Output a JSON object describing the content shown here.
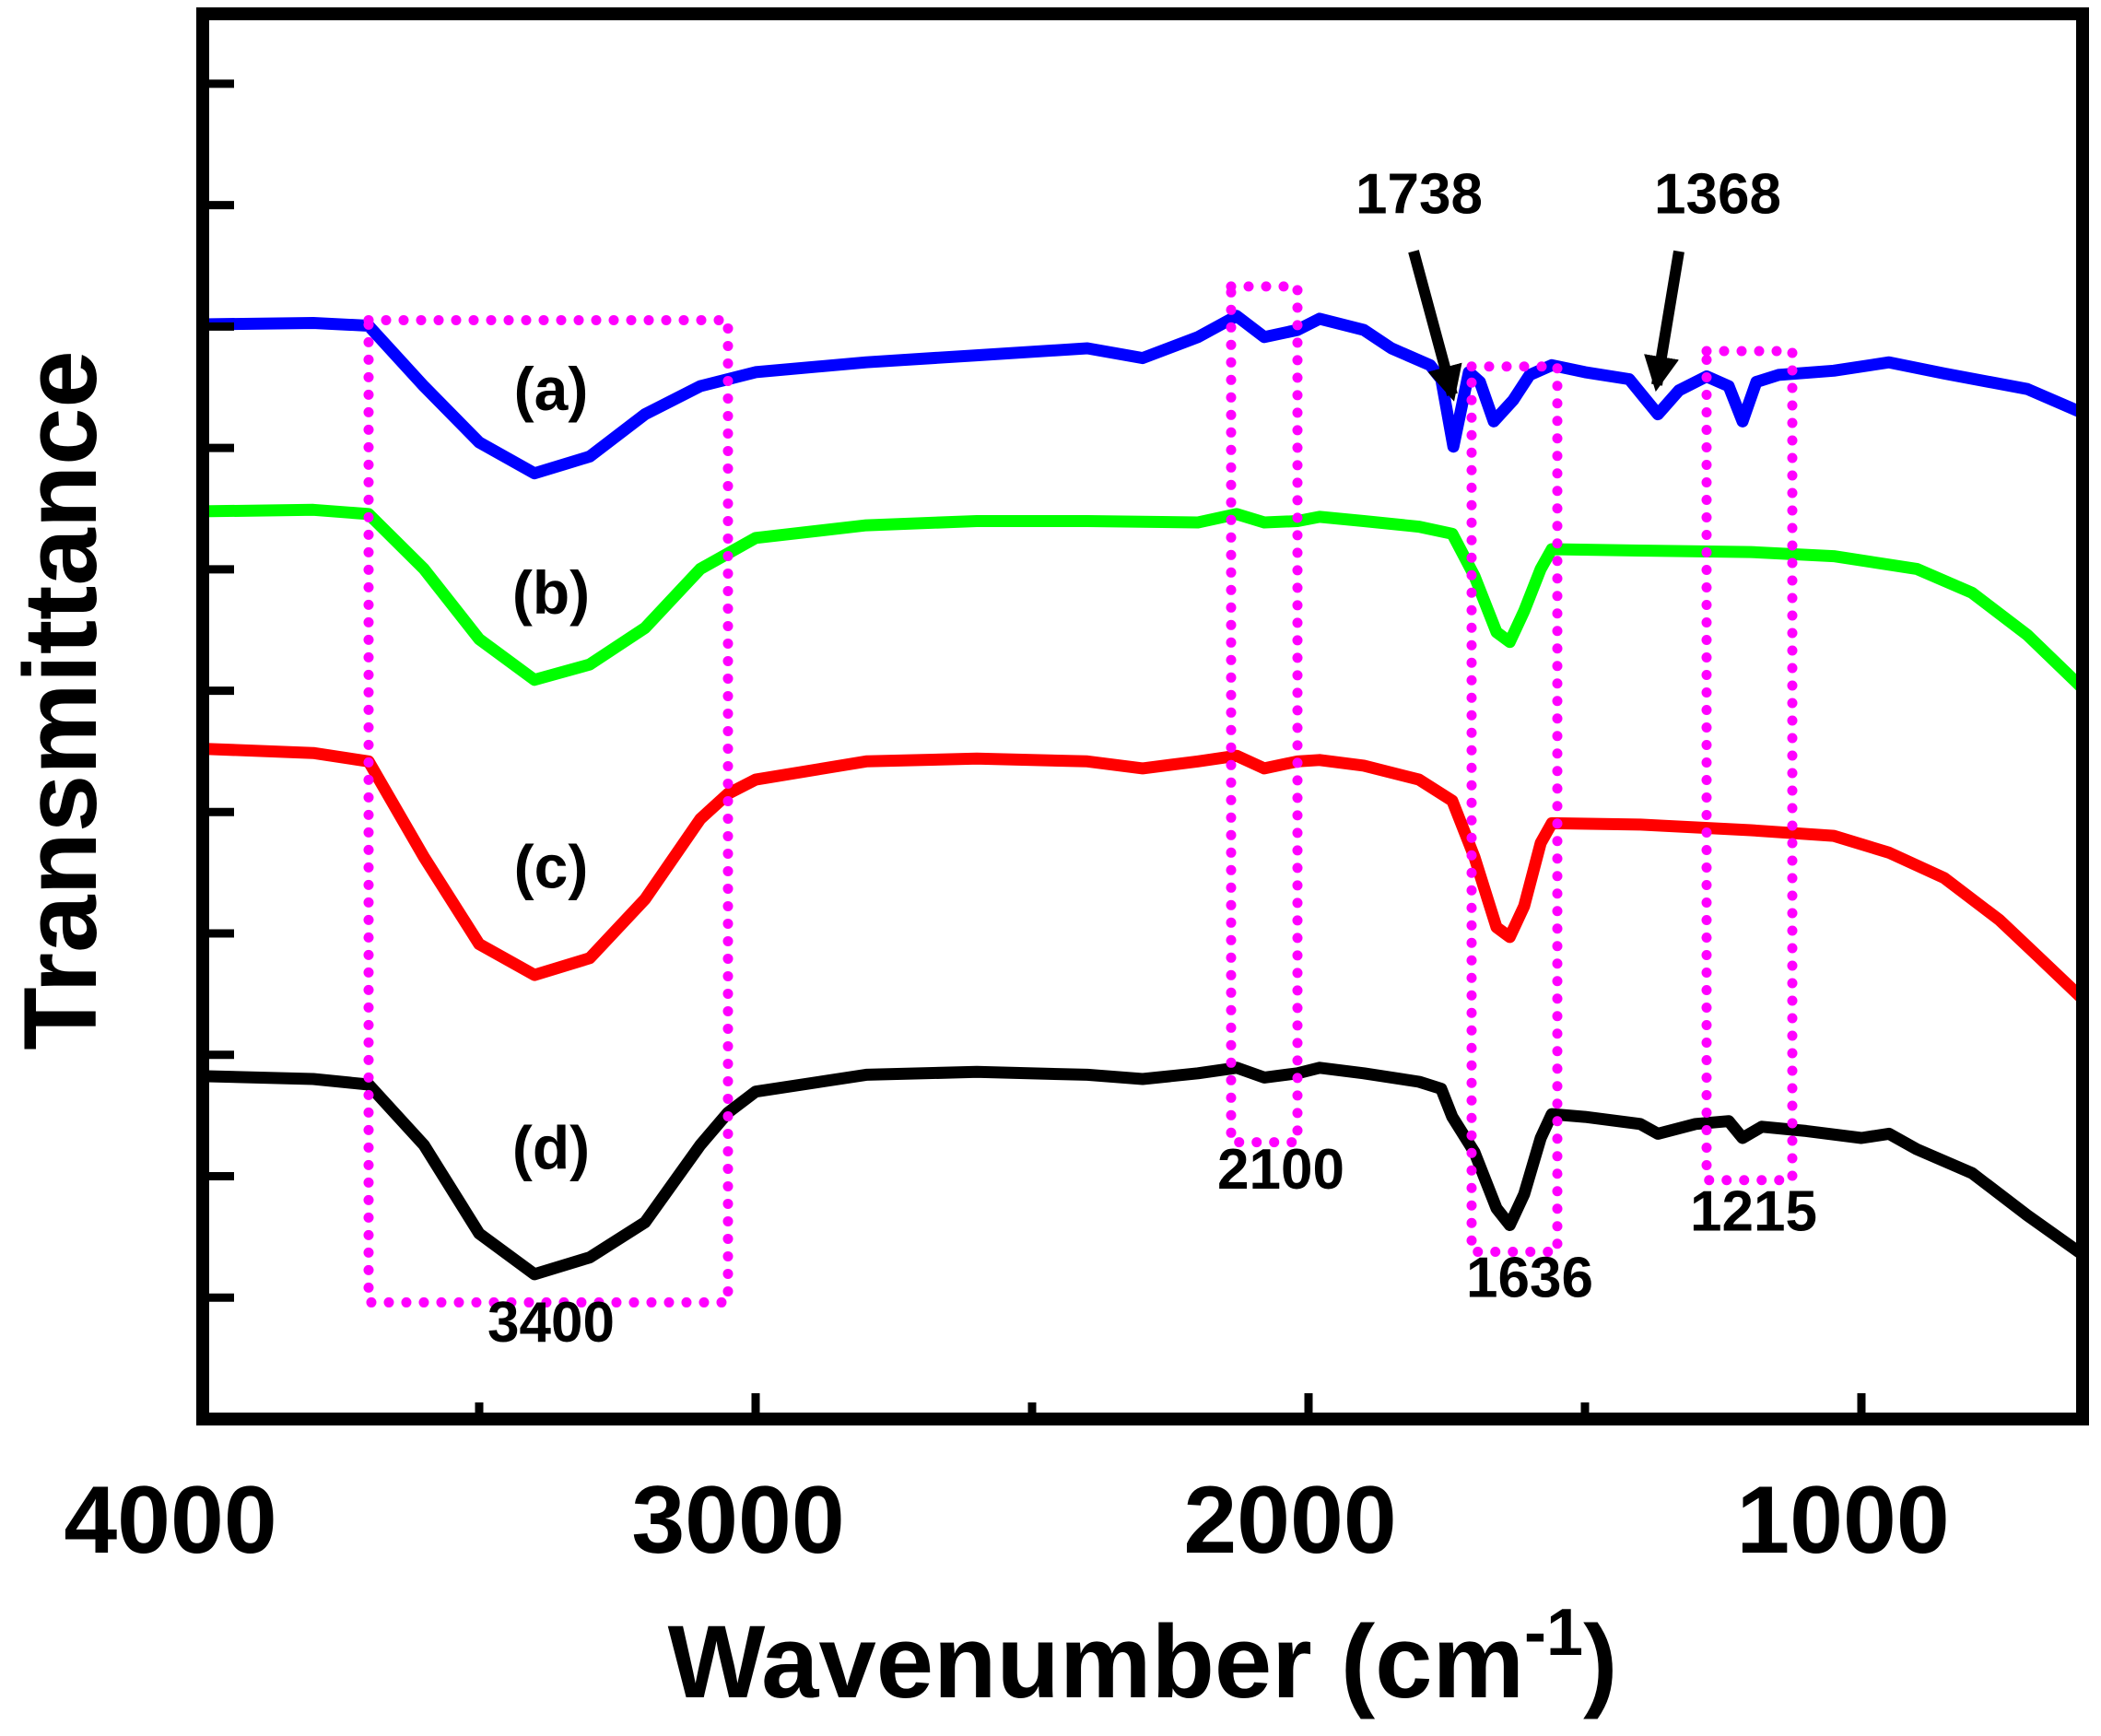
{
  "chart_data": {
    "type": "line",
    "title": "",
    "xlabel": "Wavenumber (cm",
    "xlabel_superscript": "-1",
    "xlabel_close": ")",
    "ylabel": "Transmittance",
    "xlim": [
      4000,
      600
    ],
    "ylim": [
      0,
      100
    ],
    "x_reversed": true,
    "xticks": [
      {
        "value": 4000,
        "label": "4000"
      },
      {
        "value": 3000,
        "label": "3000"
      },
      {
        "value": 2000,
        "label": "2000"
      },
      {
        "value": 1000,
        "label": "1000"
      }
    ],
    "x_minor_ticks": [
      3500,
      2500,
      1500
    ],
    "y_ticks_count": 12,
    "yticks_labeled": false,
    "grid": false,
    "series": [
      {
        "name": "(a)",
        "color": "#0000ff",
        "points": [
          [
            4000,
            77.9
          ],
          [
            3800,
            78.0
          ],
          [
            3700,
            77.8
          ],
          [
            3600,
            73.5
          ],
          [
            3500,
            69.5
          ],
          [
            3400,
            67.3
          ],
          [
            3300,
            68.5
          ],
          [
            3200,
            71.5
          ],
          [
            3100,
            73.5
          ],
          [
            3000,
            74.5
          ],
          [
            2800,
            75.2
          ],
          [
            2600,
            75.7
          ],
          [
            2400,
            76.2
          ],
          [
            2300,
            75.5
          ],
          [
            2200,
            77.0
          ],
          [
            2130,
            78.5
          ],
          [
            2080,
            77.0
          ],
          [
            2020,
            77.5
          ],
          [
            1980,
            78.3
          ],
          [
            1900,
            77.5
          ],
          [
            1850,
            76.2
          ],
          [
            1780,
            75.0
          ],
          [
            1760,
            74.0
          ],
          [
            1738,
            69.2
          ],
          [
            1710,
            74.5
          ],
          [
            1690,
            73.8
          ],
          [
            1665,
            71.0
          ],
          [
            1630,
            72.5
          ],
          [
            1600,
            74.3
          ],
          [
            1560,
            75.0
          ],
          [
            1500,
            74.5
          ],
          [
            1420,
            74.0
          ],
          [
            1368,
            71.5
          ],
          [
            1330,
            73.2
          ],
          [
            1280,
            74.2
          ],
          [
            1240,
            73.5
          ],
          [
            1215,
            71.0
          ],
          [
            1190,
            73.8
          ],
          [
            1150,
            74.3
          ],
          [
            1050,
            74.6
          ],
          [
            950,
            75.2
          ],
          [
            850,
            74.4
          ],
          [
            700,
            73.3
          ],
          [
            600,
            71.6
          ]
        ]
      },
      {
        "name": "(b)",
        "color": "#00ff00",
        "points": [
          [
            4000,
            64.6
          ],
          [
            3800,
            64.7
          ],
          [
            3700,
            64.4
          ],
          [
            3600,
            60.5
          ],
          [
            3500,
            55.5
          ],
          [
            3400,
            52.6
          ],
          [
            3300,
            53.7
          ],
          [
            3200,
            56.3
          ],
          [
            3100,
            60.5
          ],
          [
            3000,
            62.7
          ],
          [
            2800,
            63.6
          ],
          [
            2600,
            63.9
          ],
          [
            2400,
            63.9
          ],
          [
            2200,
            63.8
          ],
          [
            2130,
            64.4
          ],
          [
            2080,
            63.8
          ],
          [
            2020,
            63.9
          ],
          [
            1980,
            64.2
          ],
          [
            1900,
            63.9
          ],
          [
            1800,
            63.5
          ],
          [
            1740,
            63.0
          ],
          [
            1700,
            60.0
          ],
          [
            1660,
            56.0
          ],
          [
            1636,
            55.3
          ],
          [
            1610,
            57.5
          ],
          [
            1580,
            60.5
          ],
          [
            1560,
            61.9
          ],
          [
            1400,
            61.8
          ],
          [
            1200,
            61.7
          ],
          [
            1050,
            61.4
          ],
          [
            900,
            60.5
          ],
          [
            800,
            58.8
          ],
          [
            700,
            55.8
          ],
          [
            600,
            52.0
          ]
        ]
      },
      {
        "name": "(c)",
        "color": "#ff0000",
        "points": [
          [
            4000,
            47.7
          ],
          [
            3800,
            47.4
          ],
          [
            3700,
            46.8
          ],
          [
            3600,
            40.0
          ],
          [
            3500,
            33.8
          ],
          [
            3400,
            31.6
          ],
          [
            3300,
            32.8
          ],
          [
            3200,
            37.0
          ],
          [
            3100,
            42.7
          ],
          [
            3050,
            44.5
          ],
          [
            3000,
            45.5
          ],
          [
            2800,
            46.8
          ],
          [
            2600,
            47.0
          ],
          [
            2400,
            46.8
          ],
          [
            2300,
            46.3
          ],
          [
            2200,
            46.8
          ],
          [
            2130,
            47.2
          ],
          [
            2080,
            46.3
          ],
          [
            2020,
            46.8
          ],
          [
            1980,
            46.9
          ],
          [
            1900,
            46.5
          ],
          [
            1800,
            45.5
          ],
          [
            1740,
            44.0
          ],
          [
            1700,
            40.0
          ],
          [
            1660,
            35.0
          ],
          [
            1636,
            34.3
          ],
          [
            1610,
            36.5
          ],
          [
            1580,
            41.0
          ],
          [
            1560,
            42.4
          ],
          [
            1400,
            42.3
          ],
          [
            1200,
            41.9
          ],
          [
            1050,
            41.5
          ],
          [
            950,
            40.3
          ],
          [
            850,
            38.5
          ],
          [
            750,
            35.5
          ],
          [
            680,
            32.9
          ],
          [
            600,
            29.9
          ]
        ]
      },
      {
        "name": "(d)",
        "color": "#000000",
        "points": [
          [
            4000,
            24.4
          ],
          [
            3800,
            24.2
          ],
          [
            3700,
            23.8
          ],
          [
            3600,
            19.5
          ],
          [
            3500,
            13.2
          ],
          [
            3400,
            10.3
          ],
          [
            3300,
            11.5
          ],
          [
            3200,
            14.0
          ],
          [
            3100,
            19.5
          ],
          [
            3050,
            21.8
          ],
          [
            3000,
            23.3
          ],
          [
            2800,
            24.5
          ],
          [
            2600,
            24.7
          ],
          [
            2400,
            24.5
          ],
          [
            2300,
            24.2
          ],
          [
            2200,
            24.6
          ],
          [
            2130,
            25.0
          ],
          [
            2080,
            24.3
          ],
          [
            2020,
            24.6
          ],
          [
            1980,
            25.0
          ],
          [
            1900,
            24.6
          ],
          [
            1800,
            24.0
          ],
          [
            1760,
            23.5
          ],
          [
            1740,
            21.5
          ],
          [
            1700,
            19.0
          ],
          [
            1660,
            15.0
          ],
          [
            1636,
            13.8
          ],
          [
            1610,
            16.0
          ],
          [
            1580,
            20.0
          ],
          [
            1560,
            21.7
          ],
          [
            1500,
            21.5
          ],
          [
            1400,
            21.0
          ],
          [
            1368,
            20.3
          ],
          [
            1300,
            21.0
          ],
          [
            1240,
            21.2
          ],
          [
            1215,
            20.0
          ],
          [
            1180,
            20.8
          ],
          [
            1100,
            20.5
          ],
          [
            1000,
            20.0
          ],
          [
            950,
            20.3
          ],
          [
            900,
            19.2
          ],
          [
            800,
            17.5
          ],
          [
            700,
            14.5
          ],
          [
            600,
            11.7
          ]
        ]
      }
    ],
    "curve_labels": [
      {
        "text": "(a)",
        "x": 3370,
        "y": 71.8
      },
      {
        "text": "(b)",
        "x": 3370,
        "y": 57.3
      },
      {
        "text": "(c)",
        "x": 3370,
        "y": 37.8
      },
      {
        "text": "(d)",
        "x": 3370,
        "y": 17.8
      }
    ],
    "highlight_boxes": [
      {
        "name": "region-3400",
        "x1": 3700,
        "x2": 3050,
        "y1": 8.3,
        "y2": 78.2,
        "label": "3400",
        "label_x": 3370,
        "label_y": 5.5
      },
      {
        "name": "region-2100",
        "x1": 2140,
        "x2": 2020,
        "y1": 19.7,
        "y2": 80.6,
        "label": "2100",
        "label_x": 2050,
        "label_y": 16.4
      },
      {
        "name": "region-1636",
        "x1": 1705,
        "x2": 1550,
        "y1": 11.9,
        "y2": 74.9,
        "label": "1636",
        "label_x": 1600,
        "label_y": 8.7
      },
      {
        "name": "region-1215",
        "x1": 1280,
        "x2": 1125,
        "y1": 17.0,
        "y2": 76.0,
        "label": "1215",
        "label_x": 1195,
        "label_y": 13.4
      }
    ],
    "box_color": "#ff00ff",
    "arrows": [
      {
        "name": "arrow-1738",
        "label": "1738",
        "label_x": 1800,
        "label_y": 85.8,
        "from_x": 1810,
        "from_y": 83.1,
        "to_x": 1740,
        "to_y": 72.9
      },
      {
        "name": "arrow-1368",
        "label": "1368",
        "label_x": 1260,
        "label_y": 85.8,
        "from_x": 1330,
        "from_y": 83.1,
        "to_x": 1370,
        "to_y": 73.6
      }
    ]
  }
}
